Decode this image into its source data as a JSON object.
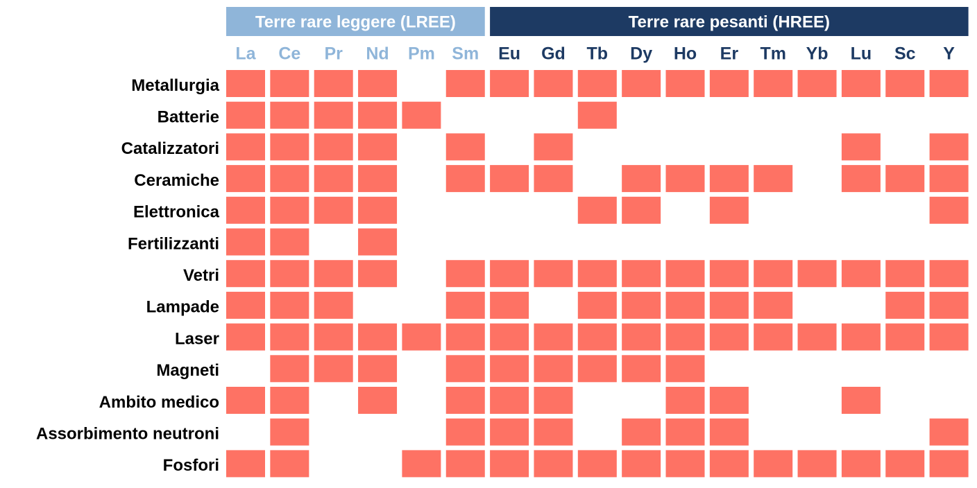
{
  "groups": [
    {
      "label": "Terre rare leggere (LREE)",
      "span": 6,
      "color": "#8fb5d9"
    },
    {
      "label": "Terre rare pesanti (HREE)",
      "span": 11,
      "color": "#1d3a63"
    }
  ],
  "columns": [
    "La",
    "Ce",
    "Pr",
    "Nd",
    "Pm",
    "Sm",
    "Eu",
    "Gd",
    "Tb",
    "Dy",
    "Ho",
    "Er",
    "Tm",
    "Yb",
    "Lu",
    "Sc",
    "Y"
  ],
  "cell_color": "#fe7264",
  "rows": [
    {
      "label": "Metallurgia",
      "cells": [
        1,
        1,
        1,
        1,
        0,
        1,
        1,
        1,
        1,
        1,
        1,
        1,
        1,
        1,
        1,
        1,
        1
      ]
    },
    {
      "label": "Batterie",
      "cells": [
        1,
        1,
        1,
        1,
        1,
        0,
        0,
        0,
        1,
        0,
        0,
        0,
        0,
        0,
        0,
        0,
        0
      ]
    },
    {
      "label": "Catalizzatori",
      "cells": [
        1,
        1,
        1,
        1,
        0,
        1,
        0,
        1,
        0,
        0,
        0,
        0,
        0,
        0,
        1,
        0,
        1
      ]
    },
    {
      "label": "Ceramiche",
      "cells": [
        1,
        1,
        1,
        1,
        0,
        1,
        1,
        1,
        0,
        1,
        1,
        1,
        1,
        0,
        1,
        1,
        1
      ]
    },
    {
      "label": "Elettronica",
      "cells": [
        1,
        1,
        1,
        1,
        0,
        0,
        0,
        0,
        1,
        1,
        0,
        1,
        0,
        0,
        0,
        0,
        1
      ]
    },
    {
      "label": "Fertilizzanti",
      "cells": [
        1,
        1,
        0,
        1,
        0,
        0,
        0,
        0,
        0,
        0,
        0,
        0,
        0,
        0,
        0,
        0,
        0
      ]
    },
    {
      "label": "Vetri",
      "cells": [
        1,
        1,
        1,
        1,
        0,
        1,
        1,
        1,
        1,
        1,
        1,
        1,
        1,
        1,
        1,
        1,
        1
      ]
    },
    {
      "label": "Lampade",
      "cells": [
        1,
        1,
        1,
        0,
        0,
        1,
        1,
        0,
        1,
        1,
        1,
        1,
        1,
        0,
        0,
        1,
        1
      ]
    },
    {
      "label": "Laser",
      "cells": [
        1,
        1,
        1,
        1,
        1,
        1,
        1,
        1,
        1,
        1,
        1,
        1,
        1,
        1,
        1,
        1,
        1
      ]
    },
    {
      "label": "Magneti",
      "cells": [
        0,
        1,
        1,
        1,
        0,
        1,
        1,
        1,
        1,
        1,
        1,
        0,
        0,
        0,
        0,
        0,
        0
      ]
    },
    {
      "label": "Ambito medico",
      "cells": [
        1,
        1,
        0,
        1,
        0,
        1,
        1,
        1,
        0,
        0,
        1,
        1,
        0,
        0,
        1,
        0,
        0
      ]
    },
    {
      "label": "Assorbimento neutroni",
      "cells": [
        0,
        1,
        0,
        0,
        0,
        1,
        1,
        1,
        0,
        1,
        1,
        1,
        0,
        0,
        0,
        0,
        1
      ]
    },
    {
      "label": "Fosfori",
      "cells": [
        1,
        1,
        0,
        0,
        1,
        1,
        1,
        1,
        1,
        1,
        1,
        1,
        1,
        1,
        1,
        1,
        1
      ]
    }
  ]
}
